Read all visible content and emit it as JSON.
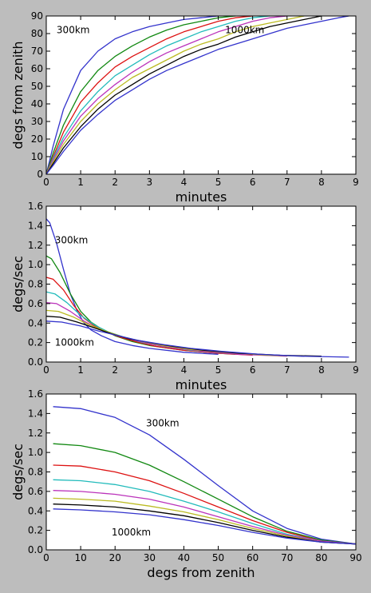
{
  "colors": {
    "background": "#bdbdbd",
    "plot_background": "#ffffff",
    "series": [
      "#3333cc",
      "#118811",
      "#dd1111",
      "#22bbbb",
      "#bb33bb",
      "#bbbb22",
      "#000000",
      "#3333cc"
    ]
  },
  "chart_data": [
    {
      "type": "line",
      "title": "",
      "xlabel": "minutes",
      "ylabel": "degs from zenith",
      "xlim": [
        0,
        9
      ],
      "ylim": [
        0,
        90
      ],
      "xticks": [
        "0",
        "1",
        "2",
        "3",
        "4",
        "5",
        "6",
        "7",
        "8",
        "9"
      ],
      "yticks": [
        "0",
        "10",
        "20",
        "30",
        "40",
        "50",
        "60",
        "70",
        "80",
        "90"
      ],
      "grid": false,
      "annotations": [
        {
          "text": "300km",
          "x": 0.3,
          "y": 82
        },
        {
          "text": "1000km",
          "x": 5.2,
          "y": 82
        }
      ],
      "series": [
        {
          "x": [
            0,
            0.2,
            0.5,
            1.0,
            1.5,
            2.0,
            2.5,
            3.0,
            3.5,
            4.0,
            4.5,
            5.0
          ],
          "values": [
            0,
            16,
            37,
            59,
            70,
            77,
            81,
            84,
            86,
            88,
            89,
            90
          ]
        },
        {
          "x": [
            0,
            0.2,
            0.5,
            1.0,
            1.5,
            2.0,
            2.5,
            3.0,
            3.5,
            4.0,
            4.5,
            5.0,
            5.5
          ],
          "values": [
            0,
            12,
            28,
            47,
            59,
            67,
            73,
            78,
            82,
            85,
            87,
            89,
            90
          ]
        },
        {
          "x": [
            0,
            0.2,
            0.5,
            1.0,
            1.5,
            2.0,
            2.5,
            3.0,
            3.5,
            4.0,
            4.5,
            5.0,
            5.5,
            6.0
          ],
          "values": [
            0,
            10,
            24,
            41,
            52,
            61,
            67,
            72,
            77,
            81,
            84,
            87,
            89,
            90
          ]
        },
        {
          "x": [
            0,
            0.2,
            0.5,
            1.0,
            1.5,
            2.0,
            2.5,
            3.0,
            3.5,
            4.0,
            4.5,
            5.0,
            5.5,
            6.0,
            6.5
          ],
          "values": [
            0,
            9,
            21,
            36,
            47,
            56,
            62,
            68,
            73,
            77,
            81,
            84,
            87,
            89,
            90
          ]
        },
        {
          "x": [
            0,
            0.2,
            0.5,
            1.0,
            1.5,
            2.0,
            2.5,
            3.0,
            3.5,
            4.0,
            4.5,
            5.0,
            5.5,
            6.0,
            6.5,
            7.0
          ],
          "values": [
            0,
            8,
            19,
            33,
            43,
            51,
            58,
            64,
            69,
            73,
            77,
            81,
            84,
            87,
            89,
            90
          ]
        },
        {
          "x": [
            0,
            0.2,
            0.5,
            1.0,
            1.5,
            2.0,
            2.5,
            3.0,
            3.5,
            4.0,
            4.5,
            5.0,
            5.5,
            6.0,
            6.5,
            7.0,
            7.5
          ],
          "values": [
            0,
            7,
            17,
            30,
            40,
            48,
            55,
            60,
            65,
            70,
            74,
            77,
            81,
            84,
            86,
            88,
            90
          ]
        },
        {
          "x": [
            0,
            0.2,
            0.5,
            1.0,
            1.5,
            2.0,
            2.5,
            3.0,
            3.5,
            4.0,
            4.5,
            5.0,
            5.5,
            6.0,
            6.5,
            7.0,
            7.5,
            8.0
          ],
          "values": [
            0,
            6,
            15,
            27,
            37,
            45,
            51,
            57,
            62,
            67,
            71,
            74,
            78,
            81,
            84,
            86,
            88,
            90
          ]
        },
        {
          "x": [
            0,
            0.2,
            0.5,
            1.0,
            1.5,
            2.0,
            2.5,
            3.0,
            3.5,
            4.0,
            4.5,
            5.0,
            5.5,
            6.0,
            6.5,
            7.0,
            7.5,
            8.0,
            8.5,
            8.8
          ],
          "values": [
            0,
            5,
            13,
            25,
            34,
            42,
            48,
            54,
            59,
            63,
            67,
            71,
            74,
            77,
            80,
            83,
            85,
            87,
            89,
            90
          ]
        }
      ]
    },
    {
      "type": "line",
      "title": "",
      "xlabel": "minutes",
      "ylabel": "degs/sec",
      "xlim": [
        0,
        9
      ],
      "ylim": [
        0,
        1.6
      ],
      "xticks": [
        "0",
        "1",
        "2",
        "3",
        "4",
        "5",
        "6",
        "7",
        "8",
        "9"
      ],
      "yticks": [
        "0.0",
        "0.2",
        "0.4",
        "0.6",
        "0.8",
        "1.0",
        "1.2",
        "1.4",
        "1.6"
      ],
      "grid": false,
      "annotations": [
        {
          "text": "300km",
          "x": 0.25,
          "y": 1.25
        },
        {
          "text": "1000km",
          "x": 0.25,
          "y": 0.2
        }
      ],
      "series": [
        {
          "x": [
            0,
            0.1,
            0.3,
            0.5,
            0.7,
            0.9,
            1.1,
            1.3,
            1.6,
            2.0,
            2.5,
            3.0,
            4.0,
            5.0
          ],
          "values": [
            1.47,
            1.43,
            1.22,
            0.95,
            0.7,
            0.52,
            0.4,
            0.33,
            0.27,
            0.21,
            0.17,
            0.14,
            0.1,
            0.08
          ]
        },
        {
          "x": [
            0,
            0.15,
            0.4,
            0.7,
            1.0,
            1.3,
            1.6,
            2.0,
            2.5,
            3.0,
            4.0,
            5.0,
            5.5
          ],
          "values": [
            1.09,
            1.06,
            0.92,
            0.7,
            0.52,
            0.41,
            0.34,
            0.27,
            0.21,
            0.17,
            0.12,
            0.09,
            0.08
          ]
        },
        {
          "x": [
            0,
            0.2,
            0.5,
            0.8,
            1.1,
            1.4,
            1.8,
            2.2,
            2.7,
            3.2,
            4.0,
            5.0,
            6.0
          ],
          "values": [
            0.87,
            0.85,
            0.74,
            0.58,
            0.45,
            0.37,
            0.3,
            0.25,
            0.2,
            0.16,
            0.12,
            0.09,
            0.07
          ]
        },
        {
          "x": [
            0,
            0.25,
            0.6,
            1.0,
            1.4,
            1.8,
            2.3,
            2.8,
            3.4,
            4.2,
            5.2,
            6.5
          ],
          "values": [
            0.72,
            0.7,
            0.61,
            0.48,
            0.38,
            0.31,
            0.25,
            0.2,
            0.16,
            0.12,
            0.09,
            0.07
          ]
        },
        {
          "x": [
            0,
            0.3,
            0.7,
            1.1,
            1.5,
            2.0,
            2.5,
            3.1,
            3.8,
            4.6,
            5.6,
            7.0
          ],
          "values": [
            0.61,
            0.6,
            0.52,
            0.42,
            0.34,
            0.28,
            0.23,
            0.18,
            0.14,
            0.11,
            0.08,
            0.06
          ]
        },
        {
          "x": [
            0,
            0.35,
            0.8,
            1.2,
            1.7,
            2.2,
            2.8,
            3.4,
            4.2,
            5.2,
            6.4,
            7.5
          ],
          "values": [
            0.53,
            0.52,
            0.46,
            0.39,
            0.32,
            0.26,
            0.21,
            0.17,
            0.13,
            0.1,
            0.07,
            0.06
          ]
        },
        {
          "x": [
            0,
            0.4,
            0.9,
            1.4,
            1.9,
            2.4,
            3.0,
            3.7,
            4.6,
            5.6,
            6.8,
            8.0
          ],
          "values": [
            0.47,
            0.46,
            0.41,
            0.35,
            0.29,
            0.24,
            0.2,
            0.16,
            0.12,
            0.09,
            0.07,
            0.06
          ]
        },
        {
          "x": [
            0,
            0.45,
            1.0,
            1.5,
            2.1,
            2.7,
            3.4,
            4.2,
            5.1,
            6.2,
            7.4,
            8.8
          ],
          "values": [
            0.42,
            0.41,
            0.37,
            0.32,
            0.27,
            0.22,
            0.18,
            0.14,
            0.11,
            0.08,
            0.06,
            0.05
          ]
        }
      ]
    },
    {
      "type": "line",
      "title": "",
      "xlabel": "degs from zenith",
      "ylabel": "degs/sec",
      "xlim": [
        0,
        90
      ],
      "ylim": [
        0,
        1.6
      ],
      "xticks": [
        "0",
        "10",
        "20",
        "30",
        "40",
        "50",
        "60",
        "70",
        "80",
        "90"
      ],
      "yticks": [
        "0.0",
        "0.2",
        "0.4",
        "0.6",
        "0.8",
        "1.0",
        "1.2",
        "1.4",
        "1.6"
      ],
      "grid": false,
      "annotations": [
        {
          "text": "300km",
          "x": 29,
          "y": 1.3
        },
        {
          "text": "1000km",
          "x": 19,
          "y": 0.18
        }
      ],
      "series": [
        {
          "x": [
            2,
            10,
            20,
            30,
            40,
            50,
            60,
            70,
            80,
            90
          ],
          "values": [
            1.47,
            1.45,
            1.36,
            1.18,
            0.93,
            0.66,
            0.4,
            0.22,
            0.11,
            0.06
          ]
        },
        {
          "x": [
            2,
            10,
            20,
            30,
            40,
            50,
            60,
            70,
            80,
            90
          ],
          "values": [
            1.09,
            1.07,
            1.0,
            0.87,
            0.7,
            0.52,
            0.34,
            0.19,
            0.1,
            0.06
          ]
        },
        {
          "x": [
            2,
            10,
            20,
            30,
            40,
            50,
            60,
            70,
            80,
            90
          ],
          "values": [
            0.87,
            0.86,
            0.8,
            0.71,
            0.58,
            0.44,
            0.3,
            0.18,
            0.09,
            0.06
          ]
        },
        {
          "x": [
            2,
            10,
            20,
            30,
            40,
            50,
            60,
            70,
            80,
            90
          ],
          "values": [
            0.72,
            0.71,
            0.67,
            0.6,
            0.5,
            0.39,
            0.27,
            0.16,
            0.09,
            0.06
          ]
        },
        {
          "x": [
            2,
            10,
            20,
            30,
            40,
            50,
            60,
            70,
            80,
            90
          ],
          "values": [
            0.61,
            0.6,
            0.57,
            0.52,
            0.44,
            0.34,
            0.24,
            0.15,
            0.09,
            0.06
          ]
        },
        {
          "x": [
            2,
            10,
            20,
            30,
            40,
            50,
            60,
            70,
            80,
            90
          ],
          "values": [
            0.53,
            0.52,
            0.5,
            0.45,
            0.39,
            0.31,
            0.22,
            0.14,
            0.08,
            0.06
          ]
        },
        {
          "x": [
            2,
            10,
            20,
            30,
            40,
            50,
            60,
            70,
            80,
            90
          ],
          "values": [
            0.47,
            0.46,
            0.44,
            0.4,
            0.35,
            0.28,
            0.2,
            0.13,
            0.08,
            0.06
          ]
        },
        {
          "x": [
            2,
            10,
            20,
            30,
            40,
            50,
            60,
            70,
            80,
            90
          ],
          "values": [
            0.42,
            0.41,
            0.39,
            0.36,
            0.31,
            0.25,
            0.18,
            0.12,
            0.08,
            0.06
          ]
        }
      ]
    }
  ]
}
